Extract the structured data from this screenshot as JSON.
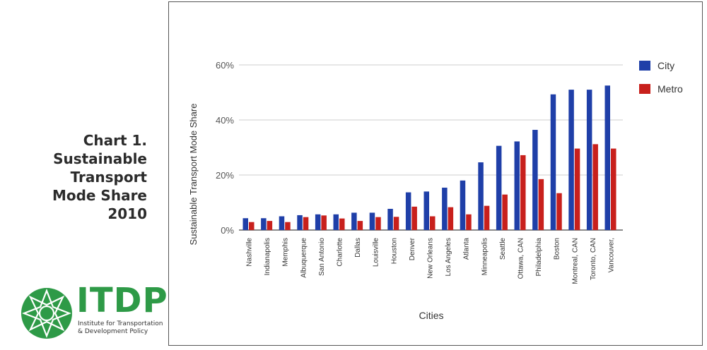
{
  "side_title": {
    "lines": [
      "Chart 1.",
      "Sustainable",
      "Transport",
      "Mode Share",
      "2010"
    ]
  },
  "logo": {
    "name": "ITDP",
    "subtitle_lines": [
      "Institute for Transportation",
      "& Development Policy"
    ],
    "color": "#2e9a47"
  },
  "chart_data": {
    "type": "bar",
    "title": "",
    "xlabel": "Cities",
    "ylabel": "Sustainable Transport Mode Share",
    "ylim": [
      0,
      60
    ],
    "yticks": [
      0,
      20,
      40,
      60
    ],
    "ytick_labels": [
      "0%",
      "20%",
      "40%",
      "60%"
    ],
    "grid": true,
    "legend_position": "right",
    "categories": [
      "Nashville",
      "Indianapolis",
      "Memphis",
      "Albuquerque",
      "San Antonio",
      "Charlotte",
      "Dallas",
      "Louisville",
      "Houston",
      "Denver",
      "New Orleans",
      "Los Angeles",
      "Atlanta",
      "Minneapolis",
      "Seattle",
      "Ottawa, CAN",
      "Philadelphia",
      "Boston",
      "Montreal, CAN",
      "Toronto, CAN",
      "Vancouver,"
    ],
    "series": [
      {
        "name": "City",
        "color": "#1f3fa8",
        "values": [
          4.3,
          4.3,
          5,
          5.4,
          5.7,
          5.7,
          6.3,
          6.3,
          7.7,
          13.7,
          14,
          15.4,
          18,
          24.6,
          30.6,
          32.2,
          36.4,
          49.3,
          51,
          51,
          52.5
        ]
      },
      {
        "name": "Metro",
        "color": "#c8201c",
        "values": [
          2.9,
          3.3,
          2.9,
          4.7,
          5.3,
          4.2,
          3.3,
          4.7,
          4.8,
          8.5,
          5,
          8.3,
          5.7,
          8.8,
          12.9,
          27.2,
          18.5,
          13.4,
          29.6,
          31.2,
          29.6
        ]
      }
    ]
  }
}
